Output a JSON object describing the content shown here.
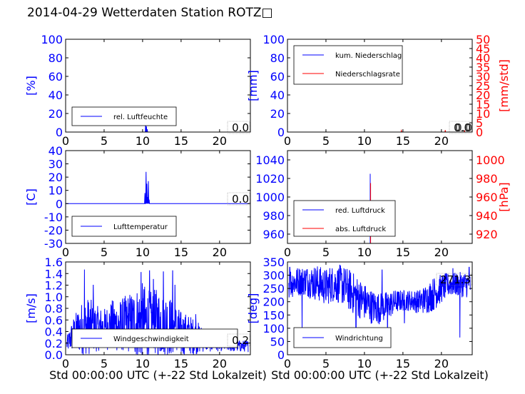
{
  "figure": {
    "title": "2014-04-29 Wetterdaten Station ROTZ□"
  },
  "colors": {
    "left_axis": "#0000ff",
    "right_axis": "#ff0000",
    "grid": "none"
  },
  "chart_data": [
    {
      "type": "line",
      "id": "humidity",
      "ylabel": "[%]",
      "xlim": [
        0,
        24
      ],
      "ylim": [
        0,
        100
      ],
      "xticks": [
        0,
        5,
        10,
        15,
        20
      ],
      "yticks": [
        0,
        20,
        40,
        60,
        80,
        100
      ],
      "legend_placement": "lower-left",
      "series": [
        {
          "name": "rel. Luftfeuchte",
          "axis": "left",
          "color": "#0000ff",
          "style": "spike",
          "spikes": [
            [
              10.4,
              12
            ],
            [
              10.5,
              6
            ],
            [
              10.6,
              3
            ]
          ],
          "baseline": 0
        }
      ],
      "current_value": "0.0"
    },
    {
      "type": "line",
      "id": "precip",
      "ylabel": "[mm]",
      "ylabel_right": "[mm/std]",
      "xlim": [
        0,
        24
      ],
      "ylim": [
        0,
        100
      ],
      "ylim_right": [
        0,
        50
      ],
      "xticks": [
        0,
        5,
        10,
        15,
        20
      ],
      "yticks": [
        0,
        20,
        40,
        60,
        80,
        100
      ],
      "yticks_right": [
        0,
        5,
        10,
        15,
        20,
        25,
        30,
        35,
        40,
        45,
        50
      ],
      "legend_placement": "upper-left",
      "series": [
        {
          "name": "kum. Niederschlag",
          "axis": "left",
          "color": "#0000ff",
          "style": "spike",
          "spikes": [],
          "baseline": 0
        },
        {
          "name": "Niederschlagsrate",
          "axis": "right",
          "color": "#ff0000",
          "style": "spike",
          "spikes": [
            [
              14.8,
              0.8
            ],
            [
              20.5,
              1.0
            ],
            [
              23.0,
              0.6
            ]
          ],
          "baseline": 0
        }
      ],
      "current_value": "0.0",
      "current_value_right": "0.0"
    },
    {
      "type": "line",
      "id": "temperature",
      "ylabel": "[C]",
      "xlim": [
        0,
        24
      ],
      "ylim": [
        -30,
        40
      ],
      "xticks": [
        0,
        5,
        10,
        15,
        20
      ],
      "yticks": [
        -30,
        -20,
        -10,
        0,
        10,
        20,
        30,
        40
      ],
      "legend_placement": "lower-left",
      "series": [
        {
          "name": "Lufttemperatur",
          "axis": "left",
          "color": "#0000ff",
          "style": "spike",
          "spikes": [
            [
              10.3,
              8
            ],
            [
              10.45,
              24
            ],
            [
              10.55,
              15
            ],
            [
              10.65,
              5
            ],
            [
              10.75,
              17
            ],
            [
              10.85,
              3
            ]
          ],
          "baseline": 0
        }
      ],
      "current_value": "0.0"
    },
    {
      "type": "line",
      "id": "pressure",
      "ylabel_right": "[hPa]",
      "xlim": [
        0,
        24
      ],
      "ylim": [
        950,
        1050
      ],
      "ylim_right": [
        910,
        1010
      ],
      "xticks": [
        0,
        5,
        10,
        15,
        20
      ],
      "yticks": [
        960,
        980,
        1000,
        1020,
        1040
      ],
      "yticks_right": [
        920,
        940,
        960,
        980,
        1000
      ],
      "legend_placement": "lower-left",
      "series": [
        {
          "name": "red. Luftdruck",
          "axis": "left",
          "color": "#0000ff",
          "style": "vbar",
          "x": 10.75,
          "range": [
            950,
            1025
          ]
        },
        {
          "name": "abs. Luftdruck",
          "axis": "right",
          "color": "#ff0000",
          "style": "vbar",
          "x": 10.8,
          "range": [
            910,
            975
          ]
        }
      ]
    },
    {
      "type": "line",
      "id": "wind_speed",
      "ylabel": "[m/s]",
      "xlabel": "Std 00:00:00 UTC (+-22 Std Lokalzeit)",
      "xlim": [
        0,
        24
      ],
      "ylim": [
        0,
        1.6
      ],
      "xticks": [
        0,
        5,
        10,
        15,
        20
      ],
      "yticks": [
        0.0,
        0.2,
        0.4,
        0.6,
        0.8,
        1.0,
        1.2,
        1.4,
        1.6
      ],
      "legend_placement": "lower-center",
      "series": [
        {
          "name": "Windgeschwindigkeit",
          "axis": "left",
          "color": "#0000ff",
          "style": "noisy",
          "profile": [
            [
              0,
              0.15,
              0.1
            ],
            [
              1,
              0.35,
              0.3
            ],
            [
              2,
              0.45,
              0.45
            ],
            [
              3,
              0.5,
              0.5
            ],
            [
              4,
              0.45,
              0.4
            ],
            [
              5,
              0.45,
              0.35
            ],
            [
              6,
              0.5,
              0.45
            ],
            [
              7,
              0.5,
              0.45
            ],
            [
              8,
              0.55,
              0.5
            ],
            [
              9,
              0.55,
              0.6
            ],
            [
              10,
              0.55,
              0.7
            ],
            [
              11,
              0.55,
              0.55
            ],
            [
              12,
              0.55,
              0.6
            ],
            [
              13,
              0.55,
              0.55
            ],
            [
              14,
              0.45,
              0.5
            ],
            [
              15,
              0.35,
              0.4
            ],
            [
              16,
              0.35,
              0.35
            ],
            [
              17,
              0.3,
              0.3
            ],
            [
              18,
              0.25,
              0.2
            ],
            [
              19,
              0.2,
              0.15
            ],
            [
              20,
              0.18,
              0.12
            ],
            [
              22,
              0.15,
              0.1
            ],
            [
              24,
              0.15,
              0.1
            ]
          ],
          "peaks": [
            [
              2.45,
              1.47
            ],
            [
              3.6,
              1.2
            ],
            [
              9.8,
              1.42
            ],
            [
              10.9,
              1.45
            ],
            [
              11.4,
              1.3
            ],
            [
              12.7,
              1.43
            ],
            [
              13.9,
              1.45
            ],
            [
              14.2,
              1.2
            ],
            [
              16.9,
              0.7
            ],
            [
              22.1,
              0.38
            ]
          ]
        }
      ],
      "current_value": "0.2"
    },
    {
      "type": "line",
      "id": "wind_dir",
      "ylabel": "[deg]",
      "xlabel": "Std 00:00:00 UTC (+-22 Std Lokalzeit)",
      "xlim": [
        0,
        24
      ],
      "ylim": [
        0,
        350
      ],
      "xticks": [
        0,
        5,
        10,
        15,
        20
      ],
      "yticks": [
        0,
        50,
        100,
        150,
        200,
        250,
        300,
        350
      ],
      "legend_placement": "lower-left",
      "series": [
        {
          "name": "Windrichtung",
          "axis": "left",
          "color": "#0000ff",
          "style": "noisy",
          "profile": [
            [
              0,
              270,
              60
            ],
            [
              2,
              280,
              55
            ],
            [
              4,
              270,
              70
            ],
            [
              5,
              255,
              70
            ],
            [
              6,
              270,
              70
            ],
            [
              7,
              265,
              75
            ],
            [
              8,
              245,
              80
            ],
            [
              9,
              220,
              80
            ],
            [
              10,
              200,
              70
            ],
            [
              11,
              180,
              65
            ],
            [
              12,
              175,
              60
            ],
            [
              13,
              185,
              55
            ],
            [
              14,
              200,
              45
            ],
            [
              15,
              205,
              40
            ],
            [
              16,
              205,
              40
            ],
            [
              17,
              200,
              45
            ],
            [
              18,
              210,
              55
            ],
            [
              19,
              230,
              65
            ],
            [
              20,
              250,
              55
            ],
            [
              21,
              265,
              45
            ],
            [
              22,
              265,
              45
            ],
            [
              23,
              265,
              50
            ],
            [
              24,
              265,
              50
            ]
          ],
          "peaks": [
            [
              0.3,
              330
            ],
            [
              2.5,
              320
            ],
            [
              4.3,
              330
            ],
            [
              5.5,
              325
            ],
            [
              6.5,
              315
            ],
            [
              12.3,
              320
            ],
            [
              21.5,
              325
            ],
            [
              23.6,
              330
            ],
            [
              1.9,
              100
            ],
            [
              8.9,
              50
            ],
            [
              13.0,
              70
            ],
            [
              15.2,
              120
            ],
            [
              22.4,
              65
            ]
          ]
        }
      ],
      "current_value": "271.3"
    }
  ]
}
